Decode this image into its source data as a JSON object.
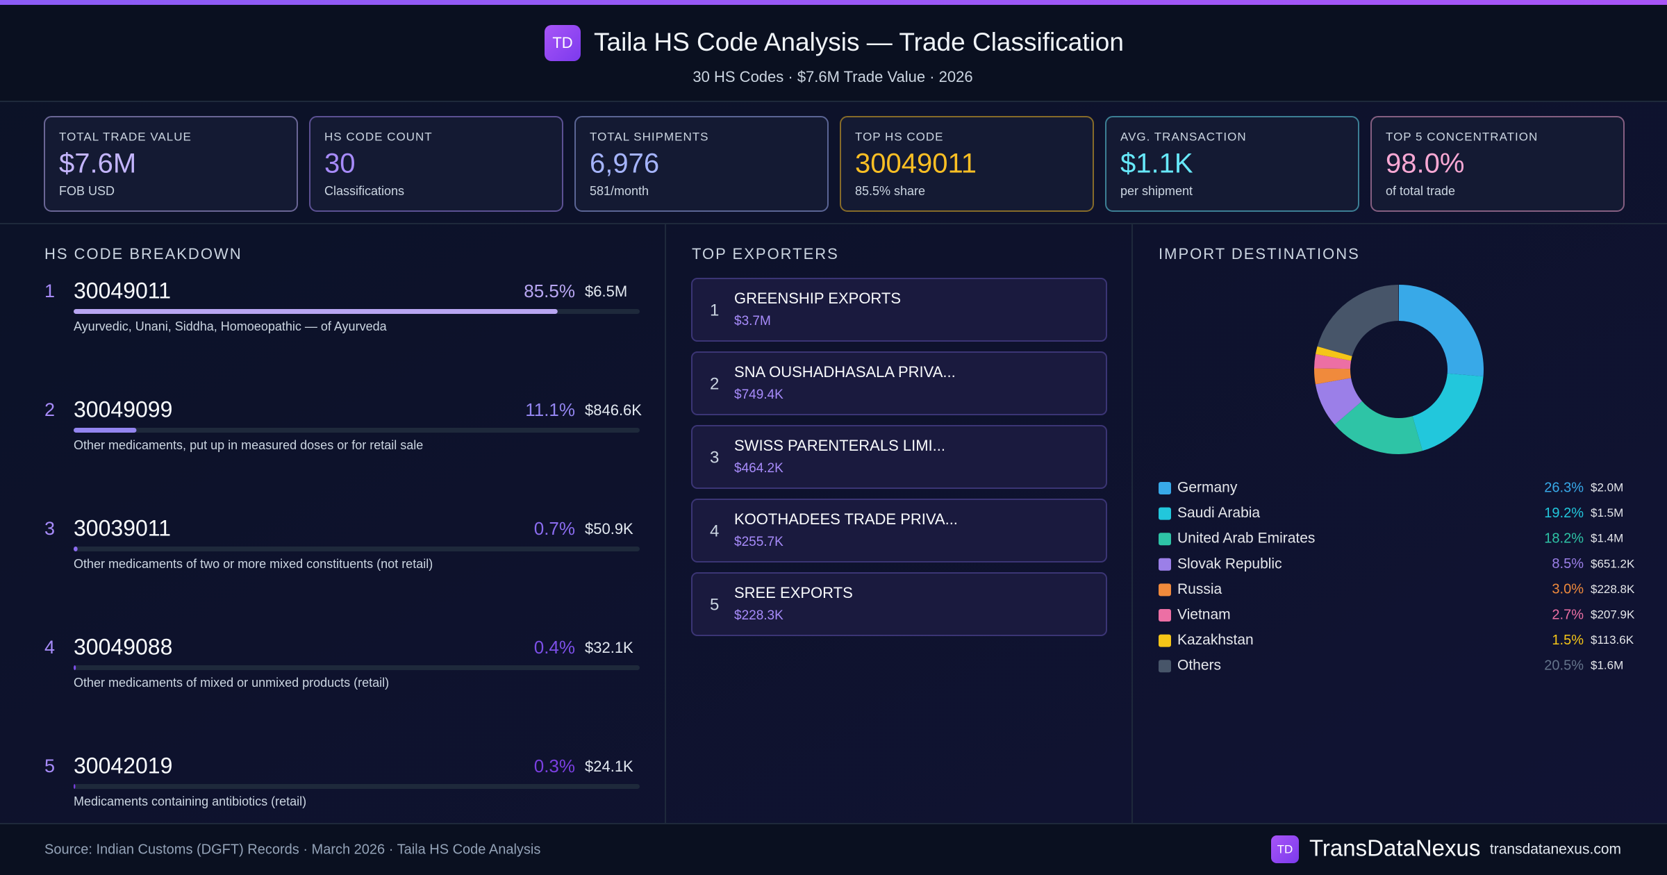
{
  "header": {
    "logo": "TD",
    "title": "Taila HS Code Analysis — Trade Classification",
    "subtitle": "30 HS Codes · $7.6M Trade Value · 2026"
  },
  "kpis": [
    {
      "label": "TOTAL TRADE VALUE",
      "value": "$7.6M",
      "note": "FOB USD",
      "color": "#c4b5fd"
    },
    {
      "label": "HS CODE COUNT",
      "value": "30",
      "note": "Classifications",
      "color": "#a78bfa"
    },
    {
      "label": "TOTAL SHIPMENTS",
      "value": "6,976",
      "note": "581/month",
      "color": "#a5b4fc"
    },
    {
      "label": "TOP HS CODE",
      "value": "30049011",
      "note": "85.5% share",
      "color": "#fbbf24"
    },
    {
      "label": "AVG. TRANSACTION",
      "value": "$1.1K",
      "note": "per shipment",
      "color": "#67e8f9"
    },
    {
      "label": "TOP 5 CONCENTRATION",
      "value": "98.0%",
      "note": "of total trade",
      "color": "#f9a8d4"
    }
  ],
  "hs_breakdown": {
    "title": "HS CODE BREAKDOWN",
    "items": [
      {
        "rank": "1",
        "code": "30049011",
        "share": 85.5,
        "share_label": "85.5%",
        "value": "$6.5M",
        "description": "Ayurvedic, Unani, Siddha, Homoeopathic — of Ayurveda",
        "color": "#b8a6f2"
      },
      {
        "rank": "2",
        "code": "30049099",
        "share": 11.1,
        "share_label": "11.1%",
        "value": "$846.6K",
        "description": "Other medicaments, put up in measured doses or for retail sale",
        "color": "#9385f0"
      },
      {
        "rank": "3",
        "code": "30039011",
        "share": 0.7,
        "share_label": "0.7%",
        "value": "$50.9K",
        "description": "Other medicaments of two or more mixed constituents (not retail)",
        "color": "#8b6cf0"
      },
      {
        "rank": "4",
        "code": "30049088",
        "share": 0.4,
        "share_label": "0.4%",
        "value": "$32.1K",
        "description": "Other medicaments of mixed or unmixed products (retail)",
        "color": "#7c4fe8"
      },
      {
        "rank": "5",
        "code": "30042019",
        "share": 0.3,
        "share_label": "0.3%",
        "value": "$24.1K",
        "description": "Medicaments containing antibiotics (retail)",
        "color": "#7a3fe0"
      }
    ]
  },
  "exporters": {
    "title": "TOP EXPORTERS",
    "items": [
      {
        "rank": "1",
        "name": "GREENSHIP EXPORTS",
        "value": "$3.7M"
      },
      {
        "rank": "2",
        "name": "SNA OUSHADHASALA PRIVA...",
        "value": "$749.4K"
      },
      {
        "rank": "3",
        "name": "SWISS PARENTERALS LIMI...",
        "value": "$464.2K"
      },
      {
        "rank": "4",
        "name": "KOOTHADEES TRADE PRIVA...",
        "value": "$255.7K"
      },
      {
        "rank": "5",
        "name": "SREE EXPORTS",
        "value": "$228.3K"
      }
    ]
  },
  "chart_data": {
    "type": "donut",
    "title": "IMPORT DESTINATIONS",
    "categories": [
      "Germany",
      "Saudi Arabia",
      "United Arab Emirates",
      "Slovak Republic",
      "Russia",
      "Vietnam",
      "Kazakhstan",
      "Others"
    ],
    "values": [
      26.3,
      19.2,
      18.2,
      8.5,
      3.0,
      2.7,
      1.5,
      20.5
    ],
    "value_labels": [
      "26.3%",
      "19.2%",
      "18.2%",
      "8.5%",
      "3.0%",
      "2.7%",
      "1.5%",
      "20.5%"
    ],
    "amounts": [
      "$2.0M",
      "$1.5M",
      "$1.4M",
      "$651.2K",
      "$228.8K",
      "$207.9K",
      "$113.6K",
      "$1.6M"
    ],
    "colors": [
      "#38a9e8",
      "#22c7dc",
      "#2ec4a6",
      "#9b7fe8",
      "#f08a3c",
      "#ec6fa4",
      "#f5c518",
      "#475569"
    ]
  },
  "footer": {
    "source": "Source: Indian Customs (DGFT) Records · March 2026 · Taila HS Code Analysis",
    "logo": "TD",
    "brand": "TransDataNexus",
    "url": "transdatanexus.com"
  }
}
